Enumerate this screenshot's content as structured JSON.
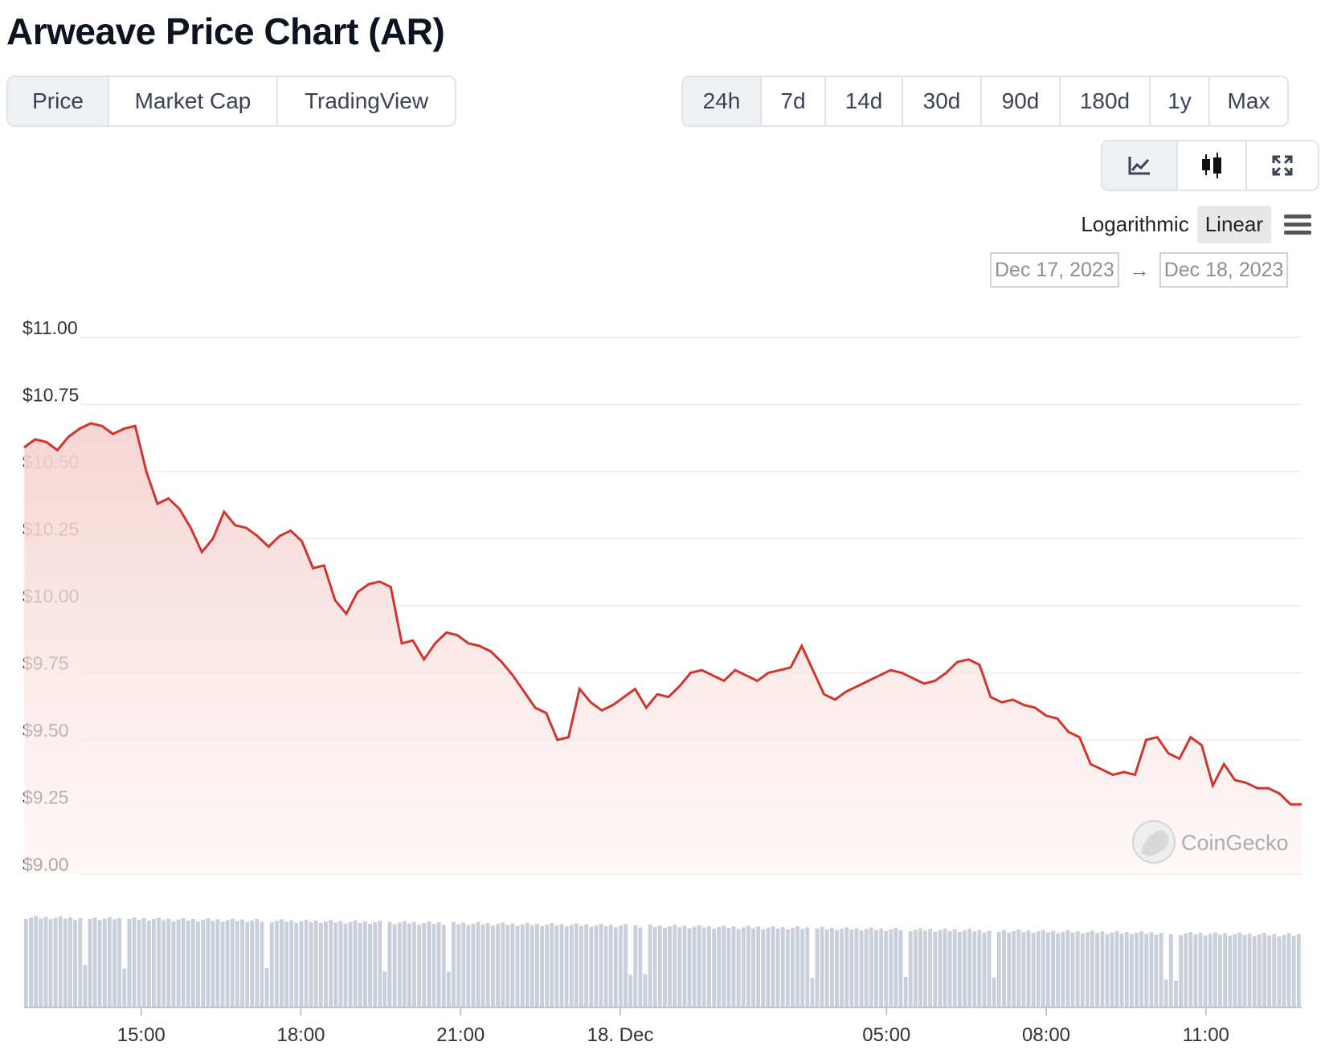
{
  "title": "Arweave Price Chart (AR)",
  "tabs": [
    {
      "label": "Price",
      "active": true
    },
    {
      "label": "Market Cap",
      "active": false
    },
    {
      "label": "TradingView",
      "active": false
    }
  ],
  "ranges": [
    {
      "label": "24h",
      "active": true
    },
    {
      "label": "7d",
      "active": false
    },
    {
      "label": "14d",
      "active": false
    },
    {
      "label": "30d",
      "active": false
    },
    {
      "label": "90d",
      "active": false
    },
    {
      "label": "180d",
      "active": false
    },
    {
      "label": "1y",
      "active": false
    },
    {
      "label": "Max",
      "active": false
    }
  ],
  "chart_type_buttons": [
    {
      "icon": "line-chart-icon",
      "active": true
    },
    {
      "icon": "candlestick-icon",
      "active": false
    },
    {
      "icon": "expand-icon",
      "active": false
    }
  ],
  "scale": {
    "logarithmic": "Logarithmic",
    "linear": "Linear",
    "active": "linear"
  },
  "date_range": {
    "from": "Dec 17, 2023",
    "to": "Dec 18, 2023",
    "arrow": "→"
  },
  "watermark": "CoinGecko",
  "colors": {
    "line": "#d0352e",
    "area_top": "#f6d3d1",
    "volume": "#c9d0dc",
    "grid": "#e8ebef"
  },
  "chart_data": {
    "type": "area",
    "ylim": [
      9.0,
      11.0
    ],
    "yticks": [
      "$11.00",
      "$10.75",
      "$10.50",
      "$10.25",
      "$10.00",
      "$9.75",
      "$9.50",
      "$9.25",
      "$9.00"
    ],
    "yticks_values": [
      11.0,
      10.75,
      10.5,
      10.25,
      10.0,
      9.75,
      9.5,
      9.25,
      9.0
    ],
    "xlim_hours": [
      12.8,
      36.8
    ],
    "xticks": [
      {
        "label": "15:00",
        "hour": 15
      },
      {
        "label": "18:00",
        "hour": 18
      },
      {
        "label": "21:00",
        "hour": 21
      },
      {
        "label": "18. Dec",
        "hour": 24
      },
      {
        "label": "05:00",
        "hour": 29
      },
      {
        "label": "08:00",
        "hour": 32
      },
      {
        "label": "11:00",
        "hour": 35
      }
    ],
    "price": [
      10.59,
      10.62,
      10.61,
      10.58,
      10.63,
      10.66,
      10.68,
      10.67,
      10.64,
      10.66,
      10.67,
      10.5,
      10.38,
      10.4,
      10.36,
      10.29,
      10.2,
      10.25,
      10.35,
      10.3,
      10.29,
      10.26,
      10.22,
      10.26,
      10.28,
      10.24,
      10.14,
      10.15,
      10.02,
      9.97,
      10.05,
      10.08,
      10.09,
      10.07,
      9.86,
      9.87,
      9.8,
      9.86,
      9.9,
      9.89,
      9.86,
      9.85,
      9.83,
      9.79,
      9.74,
      9.68,
      9.62,
      9.6,
      9.5,
      9.51,
      9.69,
      9.64,
      9.61,
      9.63,
      9.66,
      9.69,
      9.62,
      9.67,
      9.66,
      9.7,
      9.75,
      9.76,
      9.74,
      9.72,
      9.76,
      9.74,
      9.72,
      9.75,
      9.76,
      9.77,
      9.85,
      9.76,
      9.67,
      9.65,
      9.68,
      9.7,
      9.72,
      9.74,
      9.76,
      9.75,
      9.73,
      9.71,
      9.72,
      9.75,
      9.79,
      9.8,
      9.78,
      9.66,
      9.64,
      9.65,
      9.63,
      9.62,
      9.59,
      9.58,
      9.53,
      9.51,
      9.41,
      9.39,
      9.37,
      9.38,
      9.37,
      9.5,
      9.51,
      9.45,
      9.43,
      9.51,
      9.48,
      9.33,
      9.41,
      9.35,
      9.34,
      9.32,
      9.32,
      9.3,
      9.26,
      9.26
    ]
  }
}
